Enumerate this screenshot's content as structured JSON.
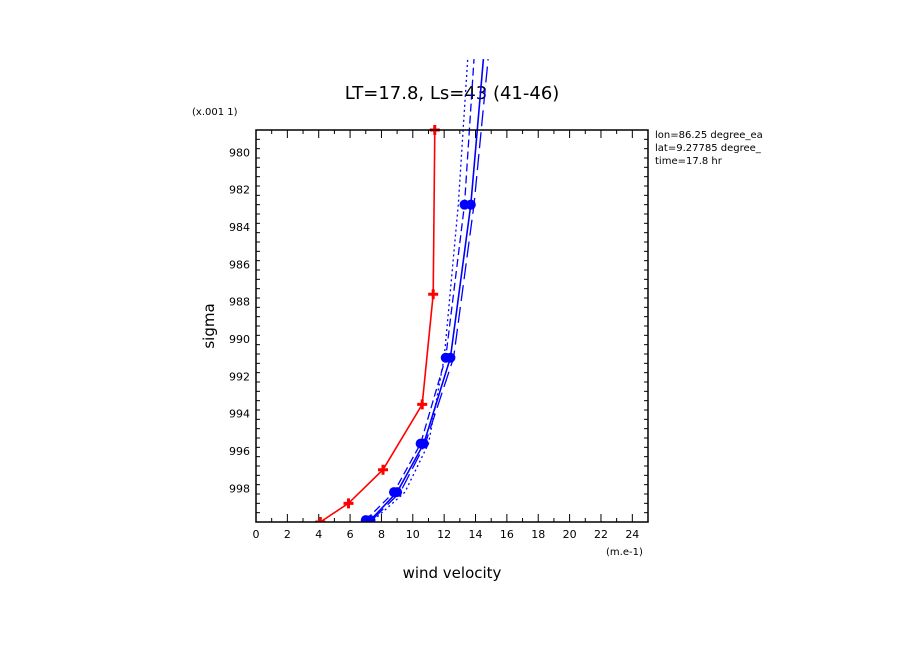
{
  "chart_data": {
    "type": "line",
    "title": "LT=17.8, Ls=43 (41-46)",
    "xlabel": "wind velocity",
    "ylabel": "sigma",
    "x_unit": "(m.e-1)",
    "y_unit": "(x.001 1)",
    "xlim": [
      0,
      25
    ],
    "ylim": [
      999.8,
      978.8
    ],
    "x_ticks": [
      0,
      2,
      4,
      6,
      8,
      10,
      12,
      14,
      16,
      18,
      20,
      22,
      24
    ],
    "y_ticks": [
      980,
      982,
      984,
      986,
      988,
      990,
      992,
      994,
      996,
      998
    ],
    "info_lines": [
      "lon=86.25 degree_ea",
      "lat=9.27785 degree_",
      "time=17.8 hr"
    ],
    "series": [
      {
        "color": "#ff0000",
        "style": "solid",
        "marker": "plus",
        "x": [
          4.1,
          5.9,
          8.1,
          10.6,
          11.3,
          11.4
        ],
        "y": [
          999.8,
          998.8,
          997.0,
          993.5,
          987.6,
          978.8
        ]
      },
      {
        "color": "#0000ff",
        "style": "solid",
        "marker": "circle",
        "x": [
          7.3,
          9.0,
          10.7,
          12.4,
          13.7,
          14.5
        ],
        "y": [
          999.7,
          998.2,
          995.6,
          991.0,
          982.8,
          975.0
        ]
      },
      {
        "color": "#0000ff",
        "style": "dashed",
        "marker": "circle",
        "x": [
          7.0,
          8.8,
          10.5,
          12.1,
          13.3,
          13.9
        ],
        "y": [
          999.7,
          998.2,
          995.6,
          991.0,
          982.8,
          975.0
        ]
      },
      {
        "color": "#0000ff",
        "style": "dotted",
        "marker": "none",
        "x": [
          7.5,
          9.5,
          11.0,
          12.0,
          12.9,
          13.5
        ],
        "y": [
          999.7,
          998.2,
          995.6,
          991.0,
          982.8,
          975.0
        ]
      },
      {
        "color": "#0000ff",
        "style": "longdash",
        "marker": "none",
        "x": [
          7.4,
          9.2,
          10.8,
          12.6,
          13.9,
          14.8
        ],
        "y": [
          999.7,
          998.2,
          995.6,
          991.0,
          982.8,
          975.0
        ]
      }
    ]
  }
}
